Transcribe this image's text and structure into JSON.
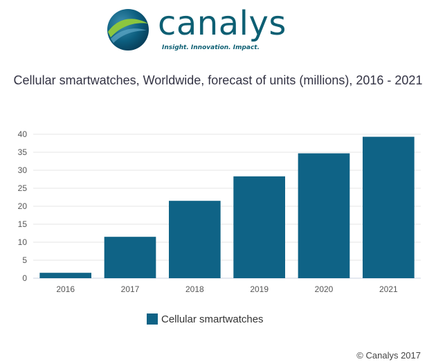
{
  "logo": {
    "wordmark": "canalys",
    "tagline": "Insight. Innovation. Impact."
  },
  "chart_data": {
    "type": "bar",
    "title": "Cellular smartwatches, Worldwide, forecast of units (millions), 2016 - 2021",
    "categories": [
      "2016",
      "2017",
      "2018",
      "2019",
      "2020",
      "2021"
    ],
    "series": [
      {
        "name": "Cellular smartwatches",
        "values": [
          1.5,
          11.5,
          21.5,
          28.3,
          34.7,
          39.3
        ],
        "color": "#0f6386"
      }
    ],
    "yticks": [
      "0",
      "5",
      "10",
      "15",
      "20",
      "25",
      "30",
      "35",
      "40"
    ],
    "ylim": [
      0,
      40
    ],
    "xlabel": "",
    "ylabel": "",
    "legend": "bottom-center",
    "grid": true
  },
  "copyright": "© Canalys 2017"
}
